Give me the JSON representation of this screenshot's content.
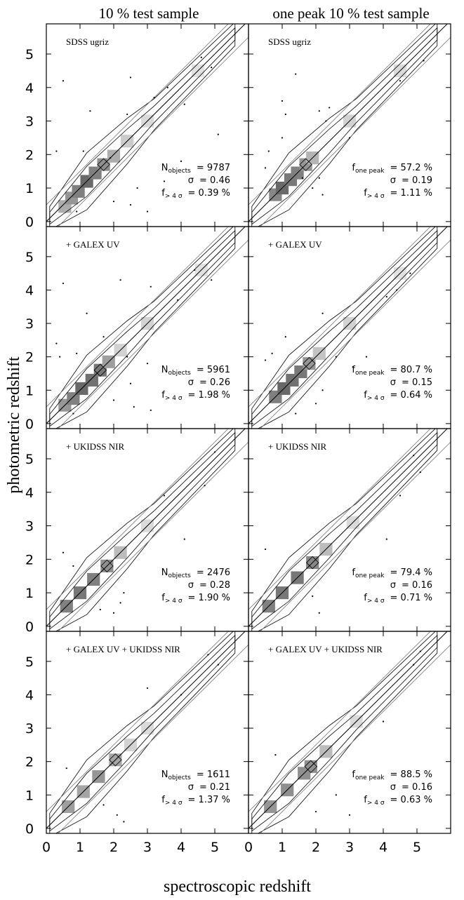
{
  "figure": {
    "col_titles": [
      "10 % test sample",
      "one peak 10 % test sample"
    ],
    "xlabel": "spectroscopic redshift",
    "ylabel": "photometric redshift"
  },
  "chart_data": {
    "type": "scatter",
    "xlim": [
      0,
      6
    ],
    "ylim": [
      -0.15,
      5.9
    ],
    "xticks": [
      0,
      1,
      2,
      3,
      4,
      5
    ],
    "yticks": [
      0,
      1,
      2,
      3,
      4,
      5
    ],
    "grid": false,
    "reference_lines": {
      "diagonal": 1,
      "offsets": [
        -0.5,
        0.5
      ]
    },
    "panels": [
      {
        "row": 0,
        "col": 0,
        "label": "SDSS ugriz",
        "stats": [
          {
            "name": "N",
            "sub": "objects",
            "value": "9787"
          },
          {
            "name": "σ",
            "value": "0.46"
          },
          {
            "name": "f",
            "sub": "> 4 σ",
            "value": "0.39 %"
          }
        ],
        "density": [
          [
            0.55,
            0.45,
            0.55
          ],
          [
            0.75,
            0.7,
            0.7
          ],
          [
            0.95,
            0.9,
            0.85
          ],
          [
            1.2,
            1.2,
            1.0
          ],
          [
            1.45,
            1.45,
            0.85
          ],
          [
            1.7,
            1.7,
            0.75
          ],
          [
            2.0,
            1.95,
            0.55
          ],
          [
            2.4,
            2.4,
            0.35
          ],
          [
            3.0,
            3.0,
            0.25
          ],
          [
            4.5,
            4.5,
            0.2
          ]
        ],
        "scatter": [
          [
            0.5,
            4.2
          ],
          [
            1.3,
            3.3
          ],
          [
            2.4,
            3.2
          ],
          [
            2.7,
            1.0
          ],
          [
            3.0,
            0.3
          ],
          [
            3.5,
            1.2
          ],
          [
            3.2,
            3.7
          ],
          [
            5.1,
            2.6
          ],
          [
            4.0,
            1.8
          ],
          [
            2.5,
            4.3
          ],
          [
            1.9,
            1.9
          ],
          [
            1.1,
            2.1
          ],
          [
            0.3,
            2.1
          ],
          [
            0.9,
            0.3
          ],
          [
            2.0,
            0.6
          ],
          [
            2.5,
            0.5
          ],
          [
            4.1,
            3.5
          ],
          [
            3.6,
            4.0
          ],
          [
            4.6,
            4.9
          ],
          [
            4.9,
            4.6
          ]
        ]
      },
      {
        "row": 0,
        "col": 1,
        "label": "SDSS ugriz",
        "stats": [
          {
            "name": "f",
            "sub": "one peak",
            "value": "57.2 %"
          },
          {
            "name": "σ",
            "value": "0.19"
          },
          {
            "name": "f",
            "sub": "> 4 σ",
            "value": "1.11 %"
          }
        ],
        "density": [
          [
            0.8,
            0.8,
            0.8
          ],
          [
            1.0,
            1.0,
            1.0
          ],
          [
            1.25,
            1.25,
            0.9
          ],
          [
            1.45,
            1.45,
            0.85
          ],
          [
            1.7,
            1.7,
            0.7
          ],
          [
            1.9,
            1.9,
            0.5
          ],
          [
            3.0,
            3.0,
            0.3
          ],
          [
            4.5,
            4.5,
            0.25
          ]
        ],
        "scatter": [
          [
            0.5,
            1.6
          ],
          [
            0.6,
            2.1
          ],
          [
            1.0,
            2.5
          ],
          [
            1.1,
            3.2
          ],
          [
            1.4,
            4.4
          ],
          [
            1.0,
            3.6
          ],
          [
            2.1,
            3.3
          ],
          [
            2.4,
            3.4
          ],
          [
            2.3,
            3.0
          ],
          [
            2.2,
            0.8
          ],
          [
            2.1,
            1.3
          ],
          [
            1.6,
            1.3
          ],
          [
            1.9,
            1.0
          ],
          [
            4.5,
            4.2
          ],
          [
            3.0,
            2.5
          ],
          [
            5.2,
            4.8
          ]
        ]
      },
      {
        "row": 1,
        "col": 0,
        "label": "+ GALEX UV",
        "stats": [
          {
            "name": "N",
            "sub": "objects",
            "value": "5961"
          },
          {
            "name": "σ",
            "value": "0.26"
          },
          {
            "name": "f",
            "sub": "> 4 σ",
            "value": "1.98 %"
          }
        ],
        "density": [
          [
            0.55,
            0.55,
            0.7
          ],
          [
            0.8,
            0.75,
            0.85
          ],
          [
            1.05,
            1.05,
            1.0
          ],
          [
            1.35,
            1.3,
            0.95
          ],
          [
            1.6,
            1.6,
            0.9
          ],
          [
            1.85,
            1.85,
            0.65
          ],
          [
            2.2,
            2.2,
            0.3
          ],
          [
            3.0,
            3.0,
            0.3
          ],
          [
            4.6,
            4.6,
            0.2
          ]
        ],
        "scatter": [
          [
            0.5,
            4.2
          ],
          [
            0.3,
            2.4
          ],
          [
            0.4,
            2.0
          ],
          [
            0.9,
            2.1
          ],
          [
            1.2,
            3.3
          ],
          [
            1.7,
            2.6
          ],
          [
            2.4,
            2.0
          ],
          [
            2.5,
            1.2
          ],
          [
            2.6,
            0.5
          ],
          [
            3.1,
            0.4
          ],
          [
            3.0,
            1.8
          ],
          [
            3.1,
            4.1
          ],
          [
            3.9,
            3.7
          ],
          [
            2.2,
            4.3
          ],
          [
            0.8,
            0.3
          ],
          [
            2.0,
            0.7
          ],
          [
            4.4,
            4.6
          ],
          [
            4.9,
            4.3
          ]
        ]
      },
      {
        "row": 1,
        "col": 1,
        "label": "+ GALEX UV",
        "stats": [
          {
            "name": "f",
            "sub": "one peak",
            "value": "80.7 %"
          },
          {
            "name": "σ",
            "value": "0.15"
          },
          {
            "name": "f",
            "sub": "> 4 σ",
            "value": "0.64 %"
          }
        ],
        "density": [
          [
            0.8,
            0.8,
            0.85
          ],
          [
            1.05,
            1.05,
            1.0
          ],
          [
            1.3,
            1.3,
            0.95
          ],
          [
            1.55,
            1.55,
            0.9
          ],
          [
            1.8,
            1.8,
            0.7
          ],
          [
            2.1,
            2.1,
            0.4
          ],
          [
            3.0,
            3.0,
            0.3
          ],
          [
            4.5,
            4.5,
            0.2
          ]
        ],
        "scatter": [
          [
            0.5,
            1.9
          ],
          [
            0.7,
            2.1
          ],
          [
            1.1,
            2.6
          ],
          [
            1.4,
            0.3
          ],
          [
            2.0,
            0.6
          ],
          [
            2.2,
            1.0
          ],
          [
            2.6,
            2.0
          ],
          [
            3.1,
            1.7
          ],
          [
            3.5,
            2.0
          ],
          [
            2.2,
            3.3
          ],
          [
            4.4,
            4.0
          ],
          [
            4.1,
            3.8
          ],
          [
            4.8,
            4.5
          ]
        ]
      },
      {
        "row": 2,
        "col": 0,
        "label": "+ UKIDSS NIR",
        "stats": [
          {
            "name": "N",
            "sub": "objects",
            "value": "2476"
          },
          {
            "name": "σ",
            "value": "0.28"
          },
          {
            "name": "f",
            "sub": "> 4 σ",
            "value": "1.90 %"
          }
        ],
        "density": [
          [
            0.6,
            0.6,
            0.85
          ],
          [
            1.0,
            1.0,
            0.9
          ],
          [
            1.4,
            1.4,
            0.85
          ],
          [
            1.8,
            1.8,
            0.75
          ],
          [
            2.2,
            2.2,
            0.45
          ],
          [
            3.0,
            3.0,
            0.25
          ]
        ],
        "scatter": [
          [
            0.5,
            2.2
          ],
          [
            0.8,
            1.8
          ],
          [
            1.6,
            0.5
          ],
          [
            2.0,
            0.4
          ],
          [
            2.2,
            0.7
          ],
          [
            2.3,
            1.0
          ],
          [
            4.1,
            2.6
          ],
          [
            3.5,
            3.9
          ],
          [
            4.7,
            4.2
          ],
          [
            5.0,
            5.2
          ]
        ]
      },
      {
        "row": 2,
        "col": 1,
        "label": "+ UKIDSS NIR",
        "stats": [
          {
            "name": "f",
            "sub": "one peak",
            "value": "79.4 %"
          },
          {
            "name": "σ",
            "value": "0.16"
          },
          {
            "name": "f",
            "sub": "> 4 σ",
            "value": "0.71 %"
          }
        ],
        "density": [
          [
            0.6,
            0.6,
            0.85
          ],
          [
            1.0,
            1.0,
            0.9
          ],
          [
            1.45,
            1.45,
            0.9
          ],
          [
            1.9,
            1.9,
            0.8
          ],
          [
            2.3,
            2.3,
            0.45
          ],
          [
            3.1,
            3.1,
            0.25
          ]
        ],
        "scatter": [
          [
            0.5,
            2.3
          ],
          [
            1.9,
            0.9
          ],
          [
            2.1,
            0.4
          ],
          [
            4.1,
            2.6
          ],
          [
            4.5,
            3.9
          ],
          [
            4.9,
            5.1
          ],
          [
            5.1,
            4.6
          ]
        ]
      },
      {
        "row": 3,
        "col": 0,
        "label": "+ GALEX UV + UKIDSS NIR",
        "stats": [
          {
            "name": "N",
            "sub": "objects",
            "value": "1611"
          },
          {
            "name": "σ",
            "value": "0.21"
          },
          {
            "name": "f",
            "sub": "> 4 σ",
            "value": "1.37 %"
          }
        ],
        "density": [
          [
            0.65,
            0.65,
            0.65
          ],
          [
            1.1,
            1.1,
            0.6
          ],
          [
            1.55,
            1.55,
            0.7
          ],
          [
            2.05,
            2.05,
            0.6
          ],
          [
            2.5,
            2.5,
            0.3
          ],
          [
            3.0,
            3.0,
            0.25
          ]
        ],
        "scatter": [
          [
            0.6,
            1.8
          ],
          [
            2.1,
            0.4
          ],
          [
            2.3,
            0.2
          ],
          [
            1.7,
            0.7
          ],
          [
            3.0,
            4.2
          ],
          [
            4.0,
            4.0
          ],
          [
            4.8,
            5.2
          ],
          [
            5.1,
            4.9
          ]
        ]
      },
      {
        "row": 3,
        "col": 1,
        "label": "+ GALEX UV + UKIDSS NIR",
        "stats": [
          {
            "name": "f",
            "sub": "one peak",
            "value": "88.5 %"
          },
          {
            "name": "σ",
            "value": "0.16"
          },
          {
            "name": "f",
            "sub": "> 4 σ",
            "value": "0.63 %"
          }
        ],
        "density": [
          [
            0.65,
            0.65,
            0.7
          ],
          [
            1.15,
            1.15,
            0.75
          ],
          [
            1.65,
            1.65,
            0.75
          ],
          [
            1.85,
            1.85,
            0.75
          ],
          [
            2.3,
            2.3,
            0.45
          ],
          [
            3.2,
            3.2,
            0.25
          ]
        ],
        "scatter": [
          [
            0.8,
            2.2
          ],
          [
            2.0,
            0.5
          ],
          [
            2.6,
            1.0
          ],
          [
            3.0,
            0.4
          ],
          [
            4.0,
            3.2
          ],
          [
            4.9,
            4.9
          ],
          [
            5.1,
            5.3
          ]
        ]
      }
    ]
  }
}
